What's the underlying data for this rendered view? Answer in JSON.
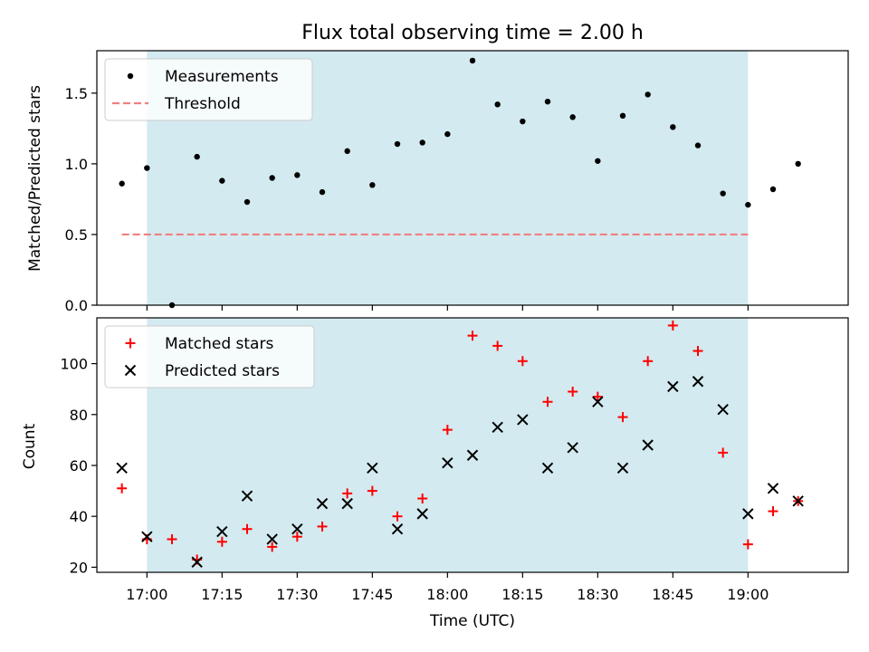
{
  "chart_data": [
    {
      "type": "scatter",
      "title": "Flux total observing time = 2.00 h",
      "xlabel": "",
      "ylabel": "Matched/Predicted stars",
      "ylim": [
        0,
        1.8
      ],
      "yticks": [
        0.0,
        0.5,
        1.0,
        1.5
      ],
      "ytick_labels": [
        "0.0",
        "0.5",
        "1.0",
        "1.5"
      ],
      "x_unit": "minutes after 16:00 UTC",
      "xlim": [
        50,
        200
      ],
      "shaded_span": [
        60,
        180
      ],
      "shade_color": "#d3eaf0",
      "legend": {
        "position": "upper left"
      },
      "series": [
        {
          "name": "Measurements",
          "marker": "dot",
          "color": "#000000",
          "x": [
            55,
            60,
            65,
            70,
            75,
            80,
            85,
            90,
            95,
            100,
            105,
            110,
            115,
            120,
            125,
            130,
            135,
            140,
            145,
            150,
            155,
            160,
            165,
            170,
            175,
            180,
            185,
            190,
            195
          ],
          "y": [
            0.86,
            0.97,
            0.0,
            1.05,
            0.88,
            0.73,
            0.9,
            0.92,
            0.8,
            1.09,
            0.85,
            1.14,
            1.15,
            1.21,
            1.73,
            1.42,
            1.3,
            1.44,
            1.33,
            1.02,
            1.34,
            1.49,
            1.26,
            1.13,
            0.79,
            0.71,
            0.82,
            1.0,
            null
          ]
        },
        {
          "name": "Threshold",
          "marker": "dashed-line",
          "color": "#f08080",
          "x": [
            55,
            180
          ],
          "y": [
            0.5,
            0.5
          ]
        }
      ]
    },
    {
      "type": "scatter",
      "title": "",
      "xlabel": "Time (UTC)",
      "ylabel": "Count",
      "ylim": [
        18,
        118
      ],
      "yticks": [
        20,
        40,
        60,
        80,
        100
      ],
      "ytick_labels": [
        "20",
        "40",
        "60",
        "80",
        "100"
      ],
      "x_unit": "minutes after 16:00 UTC",
      "xlim": [
        50,
        200
      ],
      "xticks": [
        60,
        75,
        90,
        105,
        120,
        135,
        150,
        165,
        180
      ],
      "xtick_labels": [
        "17:00",
        "17:15",
        "17:30",
        "17:45",
        "18:00",
        "18:15",
        "18:30",
        "18:45",
        "19:00"
      ],
      "shaded_span": [
        60,
        180
      ],
      "shade_color": "#d3eaf0",
      "legend": {
        "position": "upper left"
      },
      "series": [
        {
          "name": "Matched stars",
          "marker": "plus",
          "color": "#ff0000",
          "x": [
            55,
            60,
            65,
            70,
            75,
            80,
            85,
            90,
            95,
            100,
            105,
            110,
            115,
            120,
            125,
            130,
            135,
            140,
            145,
            150,
            155,
            160,
            165,
            170,
            175,
            180,
            185,
            190,
            195
          ],
          "y": [
            51,
            31,
            31,
            23,
            30,
            35,
            28,
            32,
            36,
            49,
            50,
            40,
            47,
            74,
            111,
            107,
            101,
            85,
            89,
            87,
            79,
            101,
            115,
            105,
            65,
            29,
            42,
            46,
            null
          ]
        },
        {
          "name": "Predicted stars",
          "marker": "x",
          "color": "#000000",
          "x": [
            55,
            60,
            65,
            70,
            75,
            80,
            85,
            90,
            95,
            100,
            105,
            110,
            115,
            120,
            125,
            130,
            135,
            140,
            145,
            150,
            155,
            160,
            165,
            170,
            175,
            180,
            185,
            190,
            195
          ],
          "y": [
            59,
            32,
            null,
            22,
            34,
            48,
            31,
            35,
            45,
            45,
            59,
            35,
            41,
            61,
            64,
            75,
            78,
            59,
            67,
            85,
            59,
            68,
            91,
            93,
            82,
            41,
            51,
            46,
            null
          ]
        }
      ]
    }
  ]
}
